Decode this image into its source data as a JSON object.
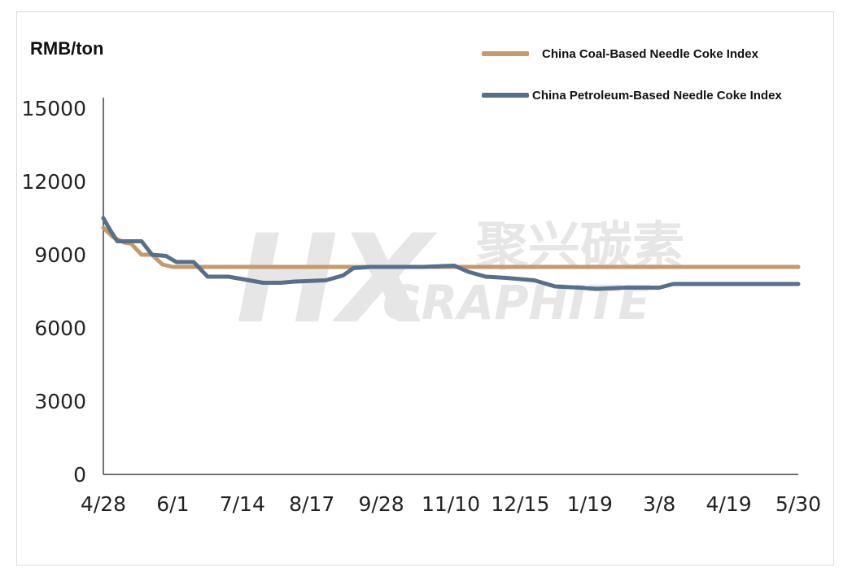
{
  "chart_data": {
    "type": "line",
    "ylabel": "RMB/ton",
    "ylim": [
      0,
      15000
    ],
    "yticks": [
      "15000",
      "12000",
      "9000",
      "6000",
      "3000",
      "0"
    ],
    "x_tick_labels": [
      "4/28",
      "6/1",
      "7/14",
      "8/17",
      "9/28",
      "11/10",
      "12/15",
      "1/19",
      "3/8",
      "4/19",
      "5/30"
    ],
    "x_count": 11,
    "grid": false,
    "legend_position": "top-right",
    "series": [
      {
        "name": "China Coal-Based Needle Coke Index",
        "color": "#c59a68",
        "points": [
          [
            0,
            10100
          ],
          [
            0.15,
            9700
          ],
          [
            0.3,
            9500
          ],
          [
            0.4,
            9450
          ],
          [
            0.55,
            9000
          ],
          [
            0.7,
            9000
          ],
          [
            0.85,
            8600
          ],
          [
            1.0,
            8500
          ],
          [
            1.2,
            8500
          ],
          [
            1.5,
            8500
          ],
          [
            2,
            8500
          ],
          [
            3,
            8500
          ],
          [
            4,
            8500
          ],
          [
            5,
            8500
          ],
          [
            6,
            8500
          ],
          [
            7,
            8500
          ],
          [
            8,
            8500
          ],
          [
            9,
            8500
          ],
          [
            10,
            8500
          ]
        ]
      },
      {
        "name": "China Petroleum-Based Needle Coke Index",
        "color": "#566f8c",
        "points": [
          [
            0,
            10500
          ],
          [
            0.1,
            10000
          ],
          [
            0.2,
            9550
          ],
          [
            0.35,
            9550
          ],
          [
            0.55,
            9550
          ],
          [
            0.7,
            9000
          ],
          [
            0.9,
            8950
          ],
          [
            1.05,
            8700
          ],
          [
            1.3,
            8700
          ],
          [
            1.5,
            8100
          ],
          [
            1.8,
            8100
          ],
          [
            2.1,
            7950
          ],
          [
            2.3,
            7850
          ],
          [
            2.55,
            7850
          ],
          [
            2.75,
            7900
          ],
          [
            3.2,
            7950
          ],
          [
            3.45,
            8150
          ],
          [
            3.6,
            8450
          ],
          [
            3.85,
            8500
          ],
          [
            4.2,
            8500
          ],
          [
            4.6,
            8500
          ],
          [
            5.05,
            8550
          ],
          [
            5.25,
            8300
          ],
          [
            5.5,
            8100
          ],
          [
            5.8,
            8050
          ],
          [
            6.2,
            7950
          ],
          [
            6.5,
            7700
          ],
          [
            6.85,
            7650
          ],
          [
            7.1,
            7600
          ],
          [
            7.5,
            7650
          ],
          [
            8.0,
            7650
          ],
          [
            8.2,
            7800
          ],
          [
            8.6,
            7800
          ],
          [
            9.0,
            7800
          ],
          [
            9.5,
            7800
          ],
          [
            10,
            7800
          ]
        ]
      }
    ]
  },
  "watermark": {
    "chinese": "聚兴碳素",
    "english": "GRAPHITE",
    "logo": "HX"
  }
}
